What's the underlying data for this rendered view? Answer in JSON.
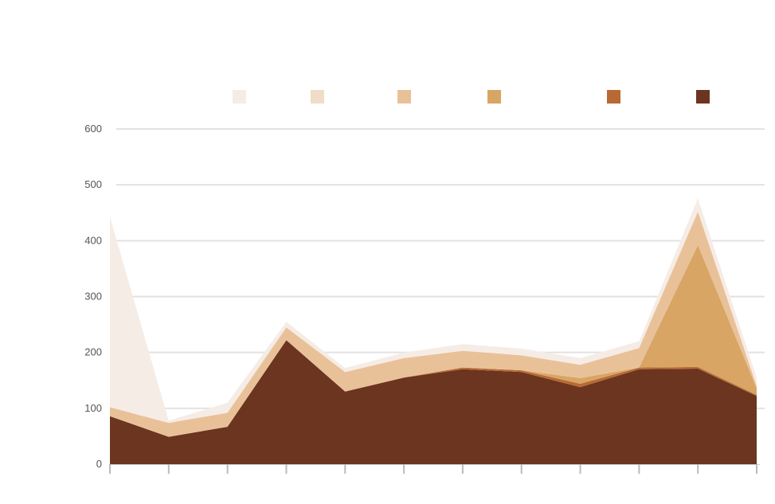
{
  "chart_data": {
    "type": "area",
    "stacked": true,
    "title": "",
    "xlabel": "",
    "ylabel": "",
    "x": [
      "",
      "",
      "",
      "",
      "",
      "",
      "",
      "",
      "",
      "",
      "",
      ""
    ],
    "ylim": [
      0,
      600
    ],
    "yticks": [
      0,
      100,
      200,
      300,
      400,
      500,
      600
    ],
    "grid": true,
    "legend_position": "top",
    "series": [
      {
        "name": "",
        "color": "#6b3520",
        "values": [
          86,
          49,
          67,
          222,
          130,
          155,
          170,
          165,
          138,
          170,
          171,
          122
        ]
      },
      {
        "name": "",
        "color": "#b86a32",
        "values": [
          0,
          0,
          0,
          0,
          0,
          0,
          3,
          3,
          6,
          3,
          3,
          2
        ]
      },
      {
        "name": "",
        "color": "#d8a565",
        "values": [
          0,
          0,
          0,
          0,
          0,
          0,
          0,
          0,
          10,
          0,
          218,
          12
        ]
      },
      {
        "name": "",
        "color": "#e9c199",
        "values": [
          16,
          25,
          25,
          23,
          35,
          35,
          30,
          27,
          24,
          35,
          60,
          4
        ]
      },
      {
        "name": "",
        "color": "#f0dcc7",
        "values": [
          0,
          0,
          0,
          0,
          0,
          0,
          0,
          0,
          0,
          0,
          0,
          0
        ]
      },
      {
        "name": "",
        "color": "#f6ece6",
        "values": [
          341,
          4,
          18,
          10,
          7,
          10,
          12,
          12,
          12,
          12,
          24,
          15
        ]
      }
    ]
  }
}
